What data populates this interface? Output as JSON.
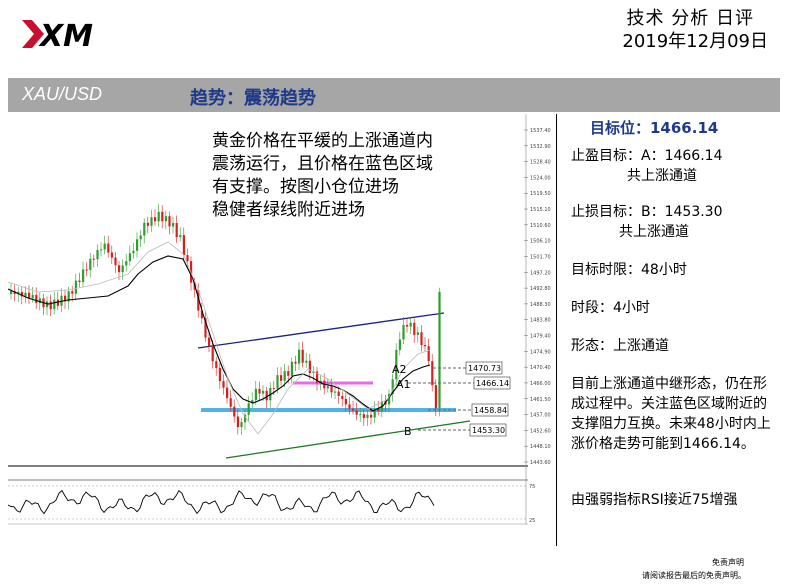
{
  "header": {
    "title": "技术 分析 日评",
    "date": "2019年12月09日"
  },
  "bar": {
    "symbol": "XAU/USD",
    "trend": "趋势：震荡趋势"
  },
  "annotation": {
    "line1": "黄金价格在平缓的上涨通道内",
    "line2": "震荡运行，且价格在蓝色区域",
    "line3": "有支撑。按图小仓位进场",
    "line4": "稳健者绿线附近进场"
  },
  "sidebar": {
    "target": "目标位：1466.14",
    "take_profit": "止盈目标：A：1466.14",
    "take_profit_note": "共上涨通道",
    "stop_loss": "止损目标：B：1453.30",
    "stop_loss_note": "共上涨通道",
    "time_limit": "目标时限：48小时",
    "timeframe": "时段：4小时",
    "pattern": "形态：上涨通道",
    "summary": "目前上涨通道中继形态，仍在形成过程中。关注蓝色区域附近的支撑阻力互换。未来48小时内上涨价格走势可能到1466.14。",
    "rsi": "由强弱指标RSI接近75增强"
  },
  "footer": {
    "line1": "免责声明",
    "line2": "请阅读报告最后的免责声明。"
  },
  "chart_labels": {
    "a2": "A2",
    "a1": "A1",
    "b": "B",
    "p1": "1470.73",
    "p2": "1466.14",
    "p3": "1458.84",
    "p4": "1453.30"
  },
  "chart_data": {
    "type": "line",
    "y_ticks": [
      "1537.40",
      "1532.90",
      "1528.40",
      "1524.00",
      "1519.50",
      "1515.10",
      "1510.60",
      "1506.10",
      "1501.70",
      "1497.20",
      "1492.80",
      "1488.30",
      "1483.80",
      "1479.40",
      "1474.90",
      "1470.40",
      "1466.00",
      "1461.50",
      "1457.00",
      "1452.60",
      "1448.10",
      "1443.60"
    ],
    "ylim": [
      1443.6,
      1537.4
    ],
    "levels": [
      1470.73,
      1466.14,
      1458.84,
      1453.3
    ],
    "rsi_ticks": [
      "75",
      "25"
    ],
    "colors": {
      "channel_top": "#1a237e",
      "channel_bottom": "#1b7a1b",
      "support": "#4fb3e8",
      "resistance": "#ee66ee",
      "bull": "#2e9e2e",
      "bear": "#d62020"
    }
  }
}
